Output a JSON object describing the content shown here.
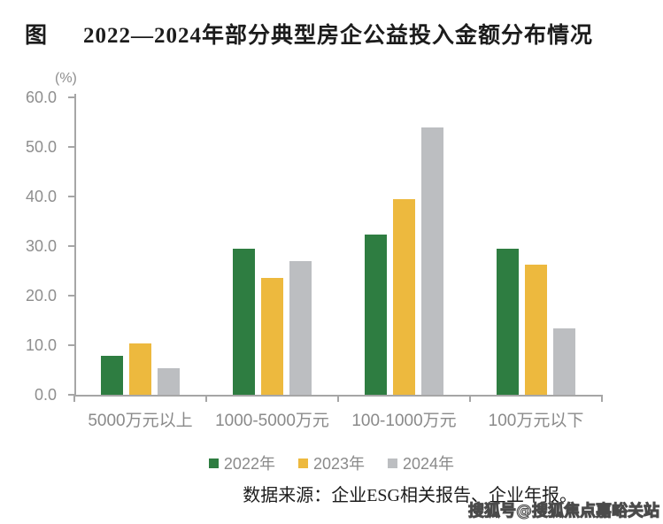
{
  "title": {
    "prefix": "图",
    "text": "2022—2024年部分典型房企公益投入金额分布情况"
  },
  "chart_data": {
    "type": "bar",
    "unit_label": "(%)",
    "categories": [
      "5000万元以上",
      "1000-5000万元",
      "100-1000万元",
      "100万元以下"
    ],
    "series": [
      {
        "name": "2022年",
        "color": "#2e7d41",
        "values": [
          7.9,
          29.5,
          32.4,
          29.5
        ]
      },
      {
        "name": "2023年",
        "color": "#edb93e",
        "values": [
          10.3,
          23.6,
          39.4,
          26.2
        ]
      },
      {
        "name": "2024年",
        "color": "#bcbec1",
        "values": [
          5.3,
          26.9,
          54.0,
          13.4
        ]
      }
    ],
    "ylim": [
      0,
      60
    ],
    "ytick_step": 10,
    "ytick_labels": [
      "0.0",
      "10.0",
      "20.0",
      "30.0",
      "40.0",
      "50.0",
      "60.0"
    ],
    "grid": false,
    "legend_position": "bottom"
  },
  "footer": {
    "source": "数据来源：企业ESG相关报告、企业年报。"
  },
  "watermark": "搜狐号@搜狐焦点嘉峪关站",
  "colors": {
    "axis": "#a6a6a6",
    "tick_text": "#8e8e8e",
    "bar_green": "#2e7d41",
    "bar_yellow": "#edb93e",
    "bar_gray": "#bcbec1"
  }
}
